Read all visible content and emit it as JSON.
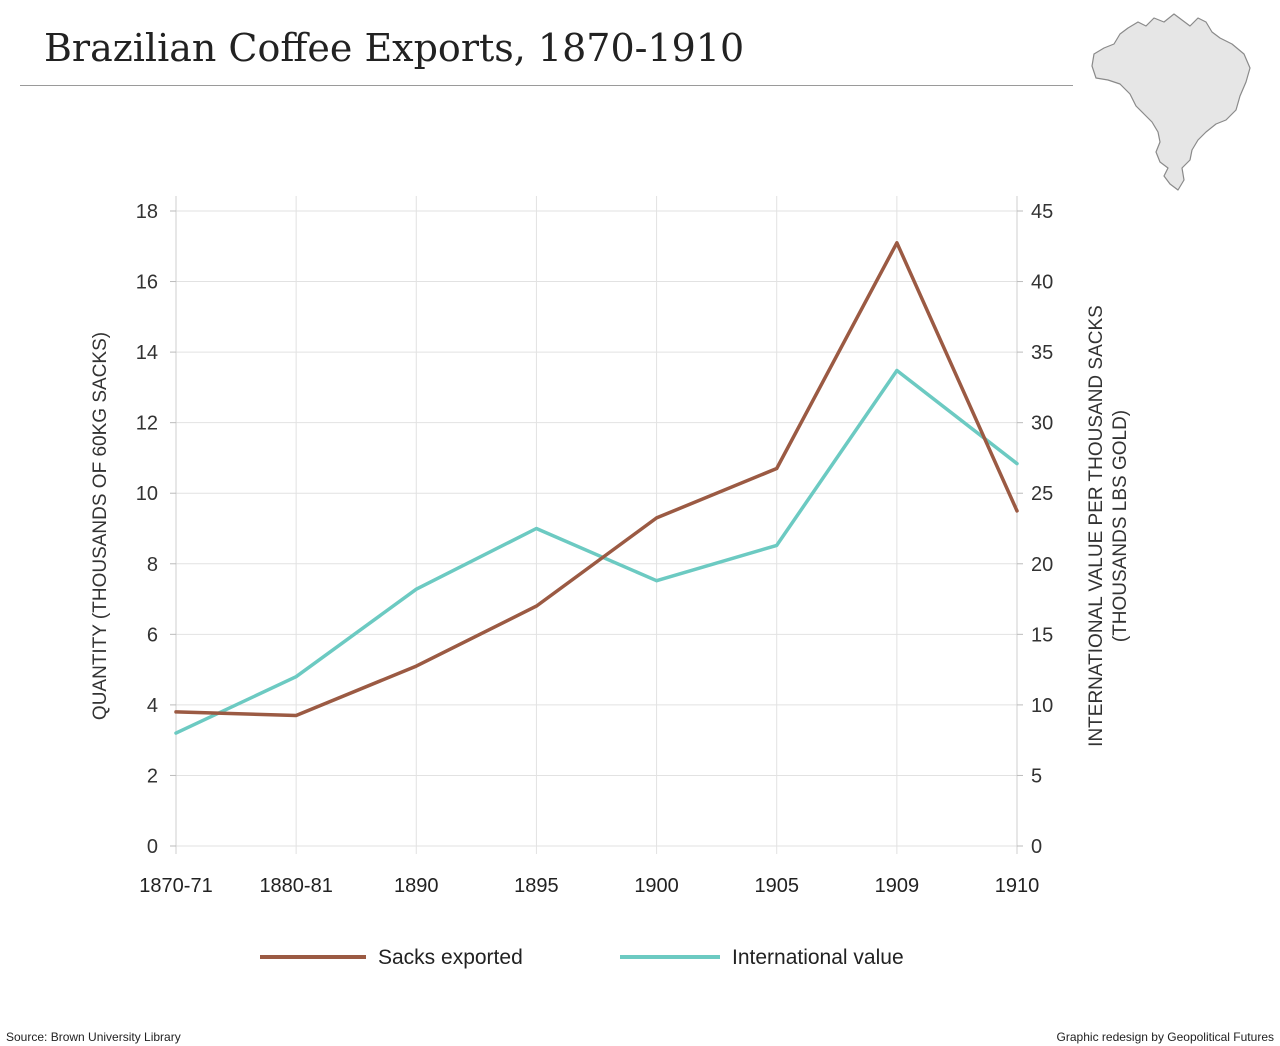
{
  "title": "Brazilian Coffee Exports, 1870-1910",
  "source": "Source: Brown University Library",
  "credit": "Graphic redesign by Geopolitical Futures",
  "map_icon": "brazil-map-icon",
  "colors": {
    "sacks": "#9b5a43",
    "value": "#6ccac2",
    "grid": "#e2e2e2",
    "axis_text": "#333333",
    "map_fill": "#e6e6e6",
    "map_stroke": "#8a8a8a"
  },
  "chart_data": {
    "type": "line",
    "categories": [
      "1870-71",
      "1880-81",
      "1890",
      "1895",
      "1900",
      "1905",
      "1909",
      "1910"
    ],
    "series": [
      {
        "name": "Sacks exported",
        "axis": "left",
        "color": "#9b5a43",
        "values": [
          3.8,
          3.7,
          5.1,
          6.8,
          9.3,
          10.7,
          17.1,
          9.5
        ]
      },
      {
        "name": "International value",
        "axis": "right",
        "color": "#6ccac2",
        "values": [
          8.0,
          12.0,
          18.2,
          22.5,
          18.8,
          21.3,
          33.7,
          27.1
        ]
      }
    ],
    "y_left": {
      "label": "QUANTITY (THOUSANDS OF 60KG SACKS)",
      "ylim": [
        0,
        18
      ],
      "ticks": [
        0,
        2,
        4,
        6,
        8,
        10,
        12,
        14,
        16,
        18
      ]
    },
    "y_right": {
      "label_line1": "INTERNATIONAL VALUE PER THOUSAND SACKS",
      "label_line2": "(THOUSANDS LBS GOLD)",
      "ylim": [
        0,
        45
      ],
      "ticks": [
        0,
        5,
        10,
        15,
        20,
        25,
        30,
        35,
        40,
        45
      ]
    },
    "grid": true,
    "legend": "bottom"
  }
}
